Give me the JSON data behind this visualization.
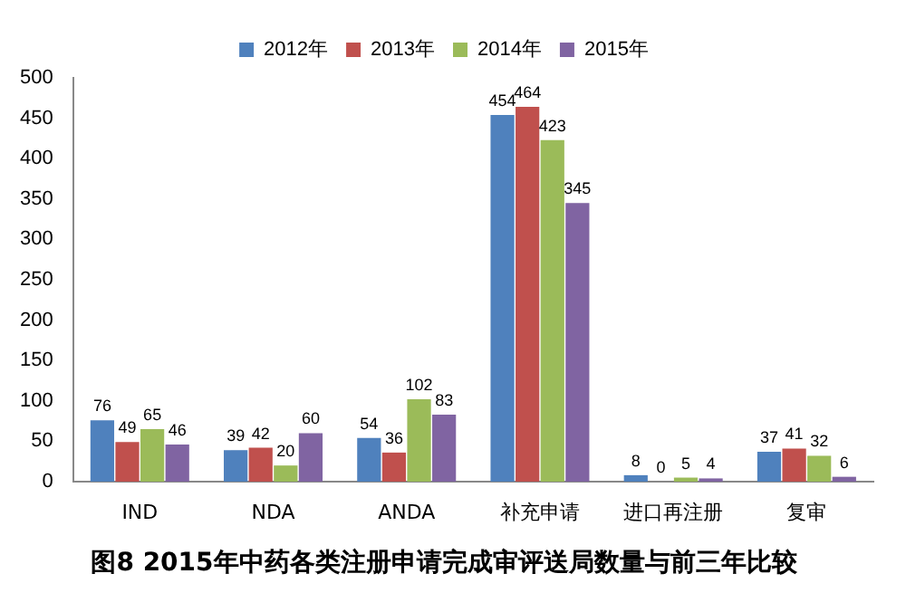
{
  "chart_data": {
    "type": "bar",
    "title": "图8 2015年中药各类注册申请完成审评送局数量与前三年比较",
    "categories": [
      "IND",
      "NDA",
      "ANDA",
      "补充申请",
      "进口再注册",
      "复审"
    ],
    "series": [
      {
        "name": "2012年",
        "color": "#4f81bd",
        "values": [
          76,
          39,
          54,
          454,
          8,
          37
        ]
      },
      {
        "name": "2013年",
        "color": "#c0504d",
        "values": [
          49,
          42,
          36,
          464,
          0,
          41
        ]
      },
      {
        "name": "2014年",
        "color": "#9bbb59",
        "values": [
          65,
          20,
          102,
          423,
          5,
          32
        ]
      },
      {
        "name": "2015年",
        "color": "#8064a2",
        "values": [
          46,
          60,
          83,
          345,
          4,
          6
        ]
      }
    ],
    "ylim": [
      0,
      500
    ],
    "yticks": [
      0,
      50,
      100,
      150,
      200,
      250,
      300,
      350,
      400,
      450,
      500
    ],
    "grid": false,
    "legend": "top",
    "data_labels": true
  }
}
